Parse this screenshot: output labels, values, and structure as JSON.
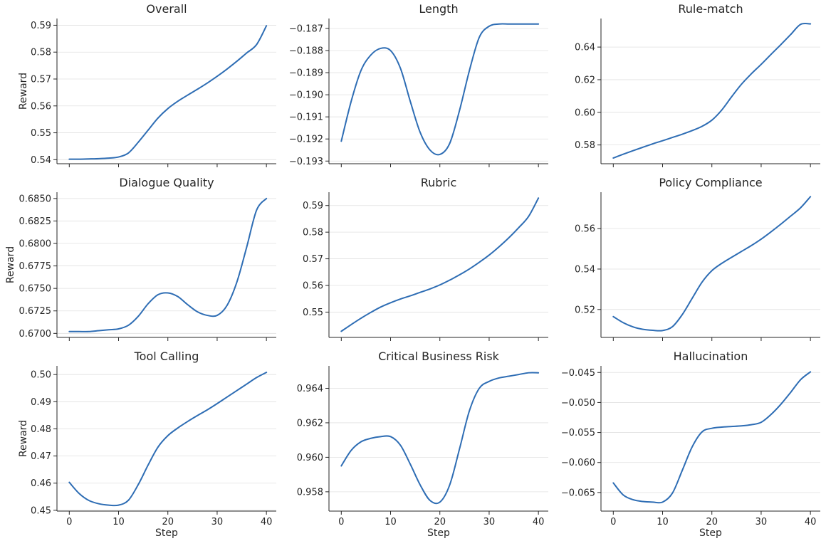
{
  "chart_data": [
    {
      "type": "line",
      "title": "Overall",
      "ylabel": "Reward",
      "xlabel": "",
      "show_x_ticklabels": false,
      "x": [
        0,
        2,
        4,
        6,
        8,
        10,
        12,
        14,
        16,
        18,
        20,
        22,
        24,
        26,
        28,
        30,
        32,
        34,
        36,
        38,
        40
      ],
      "y": [
        0.5402,
        0.5402,
        0.5403,
        0.5404,
        0.5406,
        0.541,
        0.5425,
        0.5465,
        0.551,
        0.5555,
        0.559,
        0.5617,
        0.564,
        0.5662,
        0.5685,
        0.571,
        0.5737,
        0.5766,
        0.5797,
        0.5828,
        0.5898
      ],
      "yticks": [
        "0.54",
        "0.55",
        "0.56",
        "0.57",
        "0.58",
        "0.59"
      ],
      "ylim": [
        0.5385,
        0.5925
      ],
      "xlim": [
        -2.5,
        42
      ],
      "xticks": [
        0,
        10,
        20,
        30,
        40
      ]
    },
    {
      "type": "line",
      "title": "Length",
      "ylabel": "",
      "xlabel": "",
      "show_x_ticklabels": false,
      "x": [
        0,
        2,
        4,
        6,
        8,
        10,
        12,
        14,
        16,
        18,
        20,
        22,
        24,
        26,
        28,
        30,
        32,
        34,
        36,
        38,
        40
      ],
      "y": [
        -0.1921,
        -0.1903,
        -0.1889,
        -0.1882,
        -0.1879,
        -0.188,
        -0.1888,
        -0.1903,
        -0.1917,
        -0.1925,
        -0.1927,
        -0.1922,
        -0.1907,
        -0.1889,
        -0.1874,
        -0.1869,
        -0.1868,
        -0.1868,
        -0.1868,
        -0.1868,
        -0.1868
      ],
      "yticks": [
        "−0.187",
        "−0.188",
        "−0.189",
        "−0.190",
        "−0.191",
        "−0.192",
        "−0.193"
      ],
      "ylim": [
        -0.19312,
        -0.18655
      ],
      "xlim": [
        -2.5,
        42
      ],
      "xticks": [
        0,
        10,
        20,
        30,
        40
      ]
    },
    {
      "type": "line",
      "title": "Rule-match",
      "ylabel": "",
      "xlabel": "",
      "show_x_ticklabels": false,
      "x": [
        0,
        2,
        4,
        6,
        8,
        10,
        12,
        14,
        16,
        18,
        20,
        22,
        24,
        26,
        28,
        30,
        32,
        34,
        36,
        38,
        40
      ],
      "y": [
        0.572,
        0.5743,
        0.5765,
        0.5786,
        0.5807,
        0.5826,
        0.5846,
        0.5866,
        0.5888,
        0.5914,
        0.5952,
        0.6014,
        0.6095,
        0.6172,
        0.6236,
        0.6294,
        0.6355,
        0.6415,
        0.6477,
        0.6539,
        0.6542
      ],
      "yticks": [
        "0.58",
        "0.60",
        "0.62",
        "0.64"
      ],
      "ylim": [
        0.5685,
        0.6575
      ],
      "xlim": [
        -2.5,
        42
      ],
      "xticks": [
        0,
        10,
        20,
        30,
        40
      ]
    },
    {
      "type": "line",
      "title": "Dialogue Quality",
      "ylabel": "Reward",
      "xlabel": "",
      "show_x_ticklabels": false,
      "x": [
        0,
        2,
        4,
        6,
        8,
        10,
        12,
        14,
        16,
        18,
        20,
        22,
        24,
        26,
        28,
        30,
        32,
        34,
        36,
        38,
        40
      ],
      "y": [
        0.6702,
        0.6702,
        0.6702,
        0.6703,
        0.6704,
        0.6705,
        0.6709,
        0.6719,
        0.6733,
        0.6743,
        0.6745,
        0.6741,
        0.6732,
        0.6724,
        0.672,
        0.672,
        0.6731,
        0.6757,
        0.6796,
        0.6837,
        0.685
      ],
      "yticks": [
        "0.6700",
        "0.6725",
        "0.6750",
        "0.6775",
        "0.6800",
        "0.6825",
        "0.6850"
      ],
      "ylim": [
        0.66955,
        0.6857
      ],
      "xlim": [
        -2.5,
        42
      ],
      "xticks": [
        0,
        10,
        20,
        30,
        40
      ]
    },
    {
      "type": "line",
      "title": "Rubric",
      "ylabel": "",
      "xlabel": "",
      "show_x_ticklabels": false,
      "x": [
        0,
        2,
        4,
        6,
        8,
        10,
        12,
        14,
        16,
        18,
        20,
        22,
        24,
        26,
        28,
        30,
        32,
        34,
        36,
        38,
        40
      ],
      "y": [
        0.5428,
        0.5453,
        0.5477,
        0.5499,
        0.5519,
        0.5535,
        0.5549,
        0.5561,
        0.5574,
        0.5587,
        0.5602,
        0.562,
        0.564,
        0.5662,
        0.5687,
        0.5714,
        0.5745,
        0.5779,
        0.5817,
        0.5859,
        0.5928
      ],
      "yticks": [
        "0.55",
        "0.56",
        "0.57",
        "0.58",
        "0.59"
      ],
      "ylim": [
        0.5405,
        0.595
      ],
      "xlim": [
        -2.5,
        42
      ],
      "xticks": [
        0,
        10,
        20,
        30,
        40
      ]
    },
    {
      "type": "line",
      "title": "Policy Compliance",
      "ylabel": "",
      "xlabel": "",
      "show_x_ticklabels": false,
      "x": [
        0,
        2,
        4,
        6,
        8,
        10,
        12,
        14,
        16,
        18,
        20,
        22,
        24,
        26,
        28,
        30,
        32,
        34,
        36,
        38,
        40
      ],
      "y": [
        0.5165,
        0.5135,
        0.5114,
        0.5102,
        0.5097,
        0.5096,
        0.5115,
        0.5175,
        0.5255,
        0.5335,
        0.5392,
        0.5428,
        0.5458,
        0.5487,
        0.5516,
        0.5548,
        0.5584,
        0.5622,
        0.5662,
        0.5703,
        0.5758
      ],
      "yticks": [
        "0.52",
        "0.54",
        "0.56"
      ],
      "ylim": [
        0.5062,
        0.578
      ],
      "xlim": [
        -2.5,
        42
      ],
      "xticks": [
        0,
        10,
        20,
        30,
        40
      ]
    },
    {
      "type": "line",
      "title": "Tool Calling",
      "ylabel": "Reward",
      "xlabel": "Step",
      "show_x_ticklabels": true,
      "x": [
        0,
        2,
        4,
        6,
        8,
        10,
        12,
        14,
        16,
        18,
        20,
        22,
        24,
        26,
        28,
        30,
        32,
        34,
        36,
        38,
        40
      ],
      "y": [
        0.4603,
        0.4562,
        0.4536,
        0.4524,
        0.4519,
        0.4519,
        0.4537,
        0.4595,
        0.4667,
        0.4733,
        0.4775,
        0.4803,
        0.4827,
        0.4849,
        0.487,
        0.4893,
        0.4917,
        0.4941,
        0.4965,
        0.4989,
        0.5008
      ],
      "yticks": [
        "0.45",
        "0.46",
        "0.47",
        "0.48",
        "0.49",
        "0.50"
      ],
      "ylim": [
        0.4497,
        0.5032
      ],
      "xlim": [
        -2.5,
        42
      ],
      "xticks": [
        0,
        10,
        20,
        30,
        40
      ],
      "xticklabels": [
        "0",
        "10",
        "20",
        "30",
        "40"
      ]
    },
    {
      "type": "line",
      "title": "Critical Business Risk",
      "ylabel": "",
      "xlabel": "Step",
      "show_x_ticklabels": true,
      "x": [
        0,
        2,
        4,
        6,
        8,
        10,
        12,
        14,
        16,
        18,
        20,
        22,
        24,
        26,
        28,
        30,
        32,
        34,
        36,
        38,
        40
      ],
      "y": [
        0.9595,
        0.9604,
        0.9609,
        0.9611,
        0.9612,
        0.9612,
        0.9607,
        0.9596,
        0.9584,
        0.9575,
        0.9574,
        0.9584,
        0.9605,
        0.9627,
        0.964,
        0.9644,
        0.9646,
        0.9647,
        0.9648,
        0.9649,
        0.9649
      ],
      "yticks": [
        "0.958",
        "0.960",
        "0.962",
        "0.964"
      ],
      "ylim": [
        0.95688,
        0.9653
      ],
      "xlim": [
        -2.5,
        42
      ],
      "xticks": [
        0,
        10,
        20,
        30,
        40
      ],
      "xticklabels": [
        "0",
        "10",
        "20",
        "30",
        "40"
      ]
    },
    {
      "type": "line",
      "title": "Hallucination",
      "ylabel": "",
      "xlabel": "Step",
      "show_x_ticklabels": true,
      "x": [
        0,
        2,
        4,
        6,
        8,
        10,
        12,
        14,
        16,
        18,
        20,
        22,
        24,
        26,
        28,
        30,
        32,
        34,
        36,
        38,
        40
      ],
      "y": [
        -0.0634,
        -0.0654,
        -0.0662,
        -0.0665,
        -0.0666,
        -0.0666,
        -0.0651,
        -0.0613,
        -0.0574,
        -0.0549,
        -0.0543,
        -0.0541,
        -0.054,
        -0.0539,
        -0.0537,
        -0.0533,
        -0.052,
        -0.0503,
        -0.0483,
        -0.0462,
        -0.0449
      ],
      "yticks": [
        "−0.065",
        "−0.060",
        "−0.055",
        "−0.050",
        "−0.045"
      ],
      "ylim": [
        -0.0681,
        -0.0439
      ],
      "xlim": [
        -2.5,
        42
      ],
      "xticks": [
        0,
        10,
        20,
        30,
        40
      ],
      "xticklabels": [
        "0",
        "10",
        "20",
        "30",
        "40"
      ]
    }
  ],
  "colors": {
    "line": "#2e6db4",
    "grid": "#e0e0e0",
    "axis": "#262626"
  }
}
